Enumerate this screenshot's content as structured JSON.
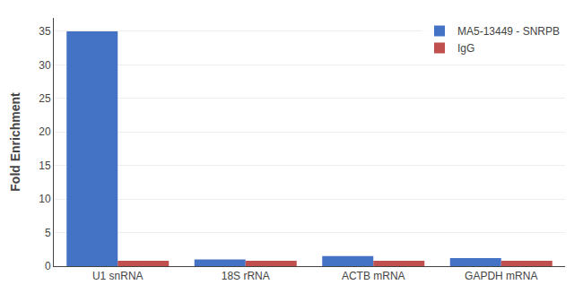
{
  "chart_data": {
    "type": "bar",
    "categories": [
      "U1 snRNA",
      "18S rRNA",
      "ACTB mRNA",
      "GAPDH mRNA"
    ],
    "series": [
      {
        "name": "MA5-13449 - SNRPB",
        "color": "#4472C4",
        "values": [
          35.0,
          1.0,
          1.5,
          1.2
        ]
      },
      {
        "name": "IgG",
        "color": "#C0504D",
        "values": [
          0.8,
          0.8,
          0.8,
          0.8
        ]
      }
    ],
    "ylabel": "Fold Enrichment",
    "ylim": [
      0,
      37
    ],
    "yticks": [
      0,
      5,
      10,
      15,
      20,
      25,
      30,
      35
    ],
    "grid": true,
    "legend": "upper right"
  }
}
